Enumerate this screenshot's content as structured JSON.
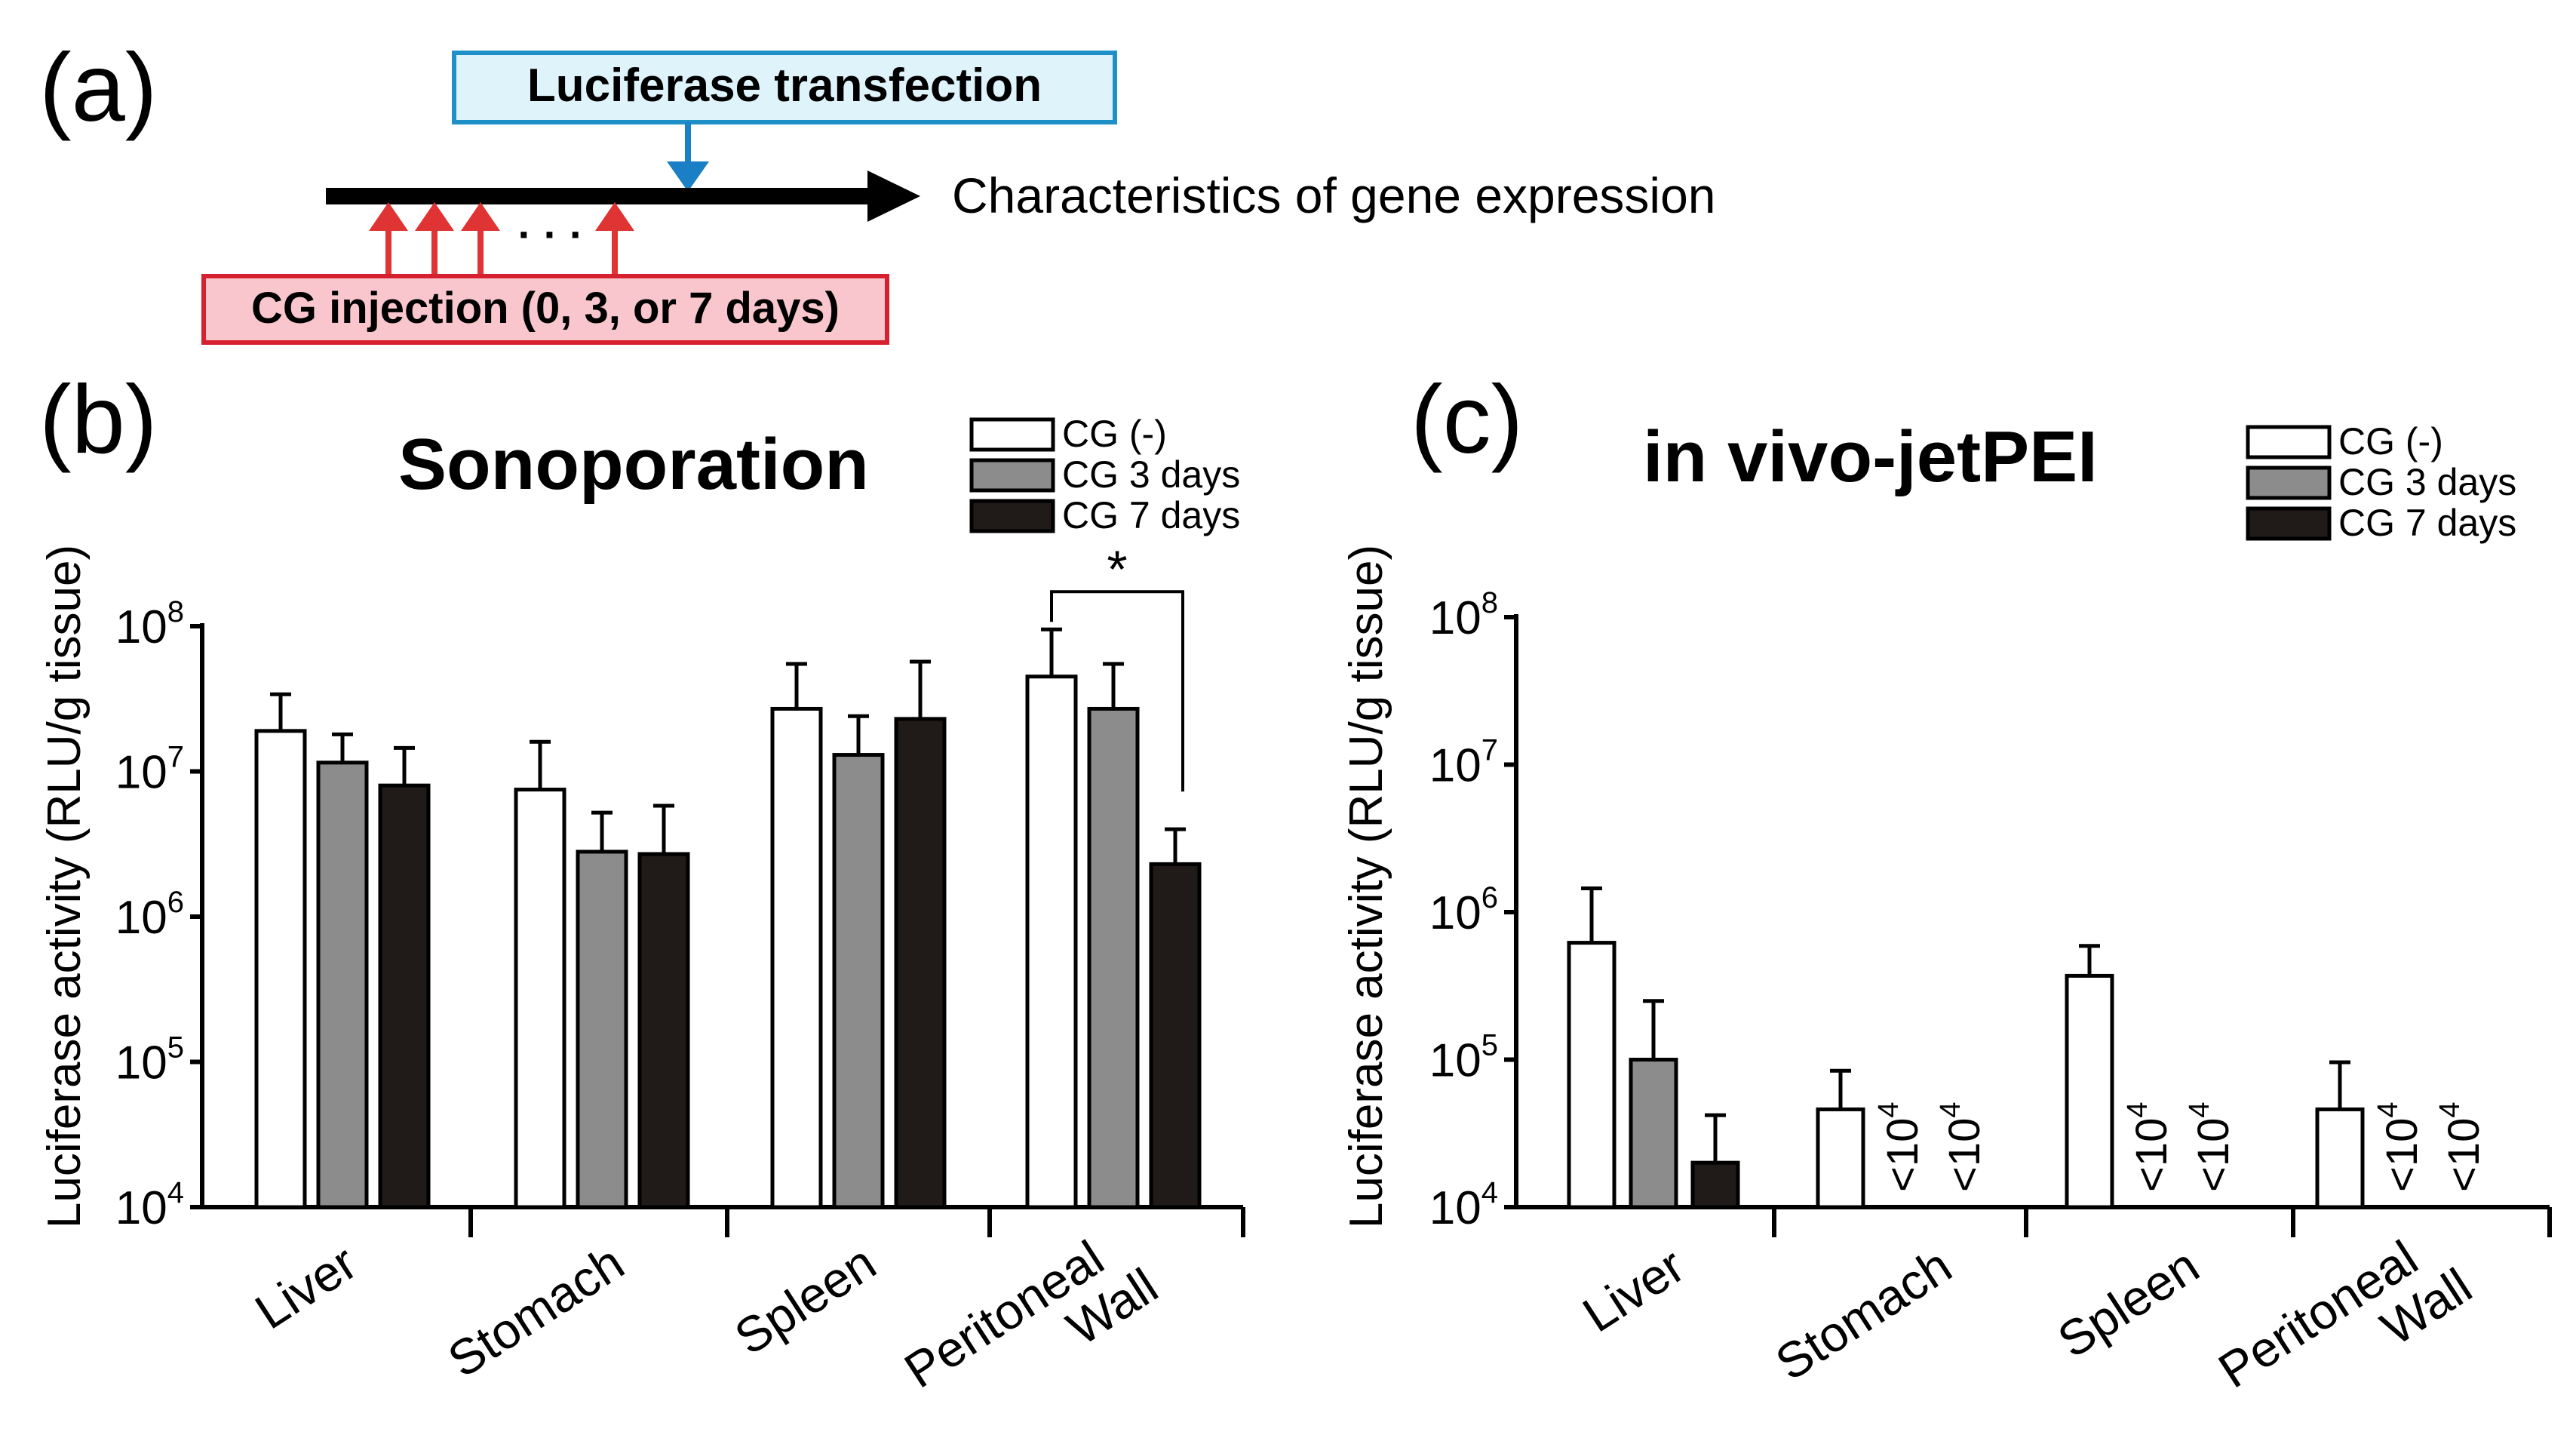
{
  "panel_a": {
    "label": "(a)",
    "transfection": "Luciferase transfection",
    "outcome": "Characteristics of gene expression",
    "injection": "CG injection (0, 3, or 7 days)",
    "dots": "· · ·",
    "colors": {
      "transfection_fill": "#dff3fb",
      "transfection_stroke": "#1e90c8",
      "transfection_arrow": "#1a7fc4",
      "injection_fill": "#f8c6cc",
      "injection_stroke": "#d62030",
      "injection_arrow": "#e03434"
    }
  },
  "chart_data": [
    {
      "panel": "(b)",
      "type": "bar",
      "title": "Sonoporation",
      "ylabel": "Luciferase activity (RLU/g tissue)",
      "yscale": "log",
      "ylim": [
        10000,
        100000000
      ],
      "ytick_base": "10",
      "ytick_exps": [
        "4",
        "5",
        "6",
        "7",
        "8"
      ],
      "categories": [
        "Liver",
        "Stomach",
        "Spleen",
        "Peritoneal Wall"
      ],
      "legend_position": "top-right",
      "series": [
        {
          "name": "CG (-)",
          "color": "#ffffff",
          "values": [
            19000000,
            7500000,
            27000000,
            45000000
          ],
          "errors": [
            34000000,
            16000000,
            55000000,
            95000000
          ]
        },
        {
          "name": "CG 3 days",
          "color": "#8c8c8c",
          "values": [
            11500000,
            2800000,
            13000000,
            27000000
          ],
          "errors": [
            18000000,
            5200000,
            24000000,
            55000000
          ]
        },
        {
          "name": "CG 7 days",
          "color": "#201a18",
          "values": [
            8000000,
            2700000,
            23000000,
            2300000
          ],
          "errors": [
            14500000,
            5800000,
            57000000,
            4000000
          ]
        }
      ],
      "significance": {
        "label": "*",
        "category": "Peritoneal Wall",
        "between": [
          "CG (-)",
          "CG 7 days"
        ]
      }
    },
    {
      "panel": "(c)",
      "type": "bar",
      "title": "in vivo-jetPEI",
      "ylabel": "Luciferase activity (RLU/g tissue)",
      "yscale": "log",
      "ylim": [
        10000,
        100000000
      ],
      "ytick_base": "10",
      "ytick_exps": [
        "4",
        "5",
        "6",
        "7",
        "8"
      ],
      "categories": [
        "Liver",
        "Stomach",
        "Spleen",
        "Peritoneal Wall"
      ],
      "legend_position": "top-right",
      "series": [
        {
          "name": "CG (-)",
          "color": "#ffffff",
          "values": [
            620000,
            46000,
            370000,
            46000
          ],
          "errors": [
            1450000,
            84000,
            590000,
            96000
          ]
        },
        {
          "name": "CG 3 days",
          "color": "#8c8c8c",
          "values": [
            100000,
            null,
            null,
            null
          ],
          "errors": [
            250000,
            null,
            null,
            null
          ]
        },
        {
          "name": "CG 7 days",
          "color": "#201a18",
          "values": [
            20000,
            null,
            null,
            null
          ],
          "errors": [
            42000,
            null,
            null,
            null
          ]
        }
      ],
      "below_detection": {
        "label": "<10",
        "exp": "4"
      }
    }
  ]
}
